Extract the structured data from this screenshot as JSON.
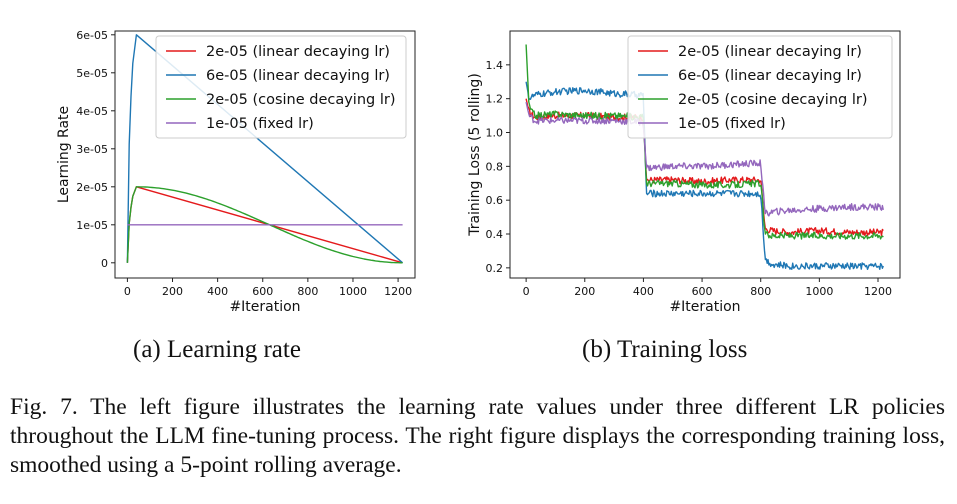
{
  "chart_data": [
    {
      "type": "line",
      "xlabel": "#Iteration",
      "ylabel": "Learning Rate",
      "xlim": [
        -55,
        1275
      ],
      "ylim": [
        -4e-06,
        6.1e-05
      ],
      "xticks": [
        0,
        200,
        400,
        600,
        800,
        1000,
        1200
      ],
      "yticks": [
        0,
        1e-05,
        2e-05,
        3e-05,
        4e-05,
        5e-05,
        6e-05
      ],
      "ytick_labels": [
        "0",
        "1e-05",
        "2e-05",
        "3e-05",
        "4e-05",
        "5e-05",
        "6e-05"
      ],
      "grid": false,
      "legend_position": "top-right",
      "series": [
        {
          "name": "2e-05 (linear decaying lr)",
          "color": "#e41a1c",
          "shape": "linear",
          "x": [
            0,
            8,
            16,
            24,
            40,
            1220
          ],
          "y": [
            0,
            1.04e-05,
            1.46e-05,
            1.75e-05,
            2e-05,
            0
          ]
        },
        {
          "name": "6e-05 (linear decaying lr)",
          "color": "#1f77b4",
          "shape": "linear",
          "x": [
            0,
            8,
            16,
            24,
            40,
            1220
          ],
          "y": [
            0,
            3.12e-05,
            4.38e-05,
            5.25e-05,
            6e-05,
            0
          ]
        },
        {
          "name": "2e-05 (cosine decaying lr)",
          "color": "#2ca02c",
          "shape": "cosine",
          "warmup_end": 40,
          "end": 1220,
          "peak": 2e-05,
          "x": [
            0,
            8,
            16,
            24,
            40,
            1220
          ],
          "y": [
            0,
            1.04e-05,
            1.46e-05,
            1.75e-05,
            2e-05,
            0
          ]
        },
        {
          "name": "1e-05 (fixed lr)",
          "color": "#9467bd",
          "shape": "constant",
          "x": [
            0,
            1220
          ],
          "y": [
            1e-05,
            1e-05
          ]
        }
      ]
    },
    {
      "type": "line",
      "xlabel": "#Iteration",
      "ylabel": "Training Loss (5 rolling)",
      "xlim": [
        -55,
        1275
      ],
      "ylim": [
        0.14,
        1.6
      ],
      "xticks": [
        0,
        200,
        400,
        600,
        800,
        1000,
        1200
      ],
      "yticks": [
        0.2,
        0.4,
        0.6,
        0.8,
        1.0,
        1.2,
        1.4
      ],
      "ytick_labels": [
        "0.2",
        "0.4",
        "0.6",
        "0.8",
        "1.0",
        "1.2",
        "1.4"
      ],
      "grid": false,
      "legend_position": "top-right",
      "series": [
        {
          "name": "2e-05 (linear decaying lr)",
          "color": "#e41a1c",
          "x": [
            0,
            10,
            30,
            100,
            200,
            300,
            400,
            410,
            500,
            600,
            700,
            800,
            815,
            840,
            900,
            1000,
            1100,
            1220
          ],
          "y": [
            1.2,
            1.12,
            1.09,
            1.1,
            1.1,
            1.09,
            1.09,
            0.72,
            0.72,
            0.71,
            0.72,
            0.72,
            0.43,
            0.42,
            0.41,
            0.42,
            0.41,
            0.41
          ],
          "noise": 0.02
        },
        {
          "name": "6e-05 (linear decaying lr)",
          "color": "#1f77b4",
          "x": [
            0,
            10,
            30,
            100,
            200,
            300,
            400,
            410,
            500,
            600,
            700,
            800,
            815,
            840,
            900,
            1000,
            1100,
            1220
          ],
          "y": [
            1.3,
            1.2,
            1.22,
            1.24,
            1.25,
            1.23,
            1.22,
            0.64,
            0.64,
            0.64,
            0.64,
            0.64,
            0.25,
            0.22,
            0.21,
            0.21,
            0.21,
            0.21
          ],
          "noise": 0.02
        },
        {
          "name": "2e-05 (cosine decaying lr)",
          "color": "#2ca02c",
          "x": [
            0,
            10,
            30,
            100,
            200,
            300,
            400,
            410,
            500,
            600,
            700,
            800,
            815,
            840,
            900,
            1000,
            1100,
            1220
          ],
          "y": [
            1.52,
            1.15,
            1.1,
            1.11,
            1.1,
            1.1,
            1.09,
            0.7,
            0.7,
            0.69,
            0.69,
            0.7,
            0.4,
            0.39,
            0.39,
            0.39,
            0.39,
            0.39
          ],
          "noise": 0.02
        },
        {
          "name": "1e-05 (fixed lr)",
          "color": "#9467bd",
          "x": [
            0,
            10,
            30,
            100,
            200,
            300,
            400,
            410,
            500,
            600,
            700,
            800,
            815,
            840,
            900,
            1000,
            1100,
            1220
          ],
          "y": [
            1.18,
            1.1,
            1.07,
            1.07,
            1.07,
            1.07,
            1.06,
            0.79,
            0.8,
            0.8,
            0.81,
            0.82,
            0.52,
            0.53,
            0.54,
            0.55,
            0.56,
            0.56
          ],
          "noise": 0.02
        }
      ]
    }
  ],
  "subcaptions": {
    "a": "(a) Learning rate",
    "b": "(b) Training loss"
  },
  "caption": "Fig. 7.  The left figure illustrates the learning rate values under three different LR policies throughout the LLM fine-tuning process. The right figure displays the corresponding training loss, smoothed using a 5-point rolling average."
}
